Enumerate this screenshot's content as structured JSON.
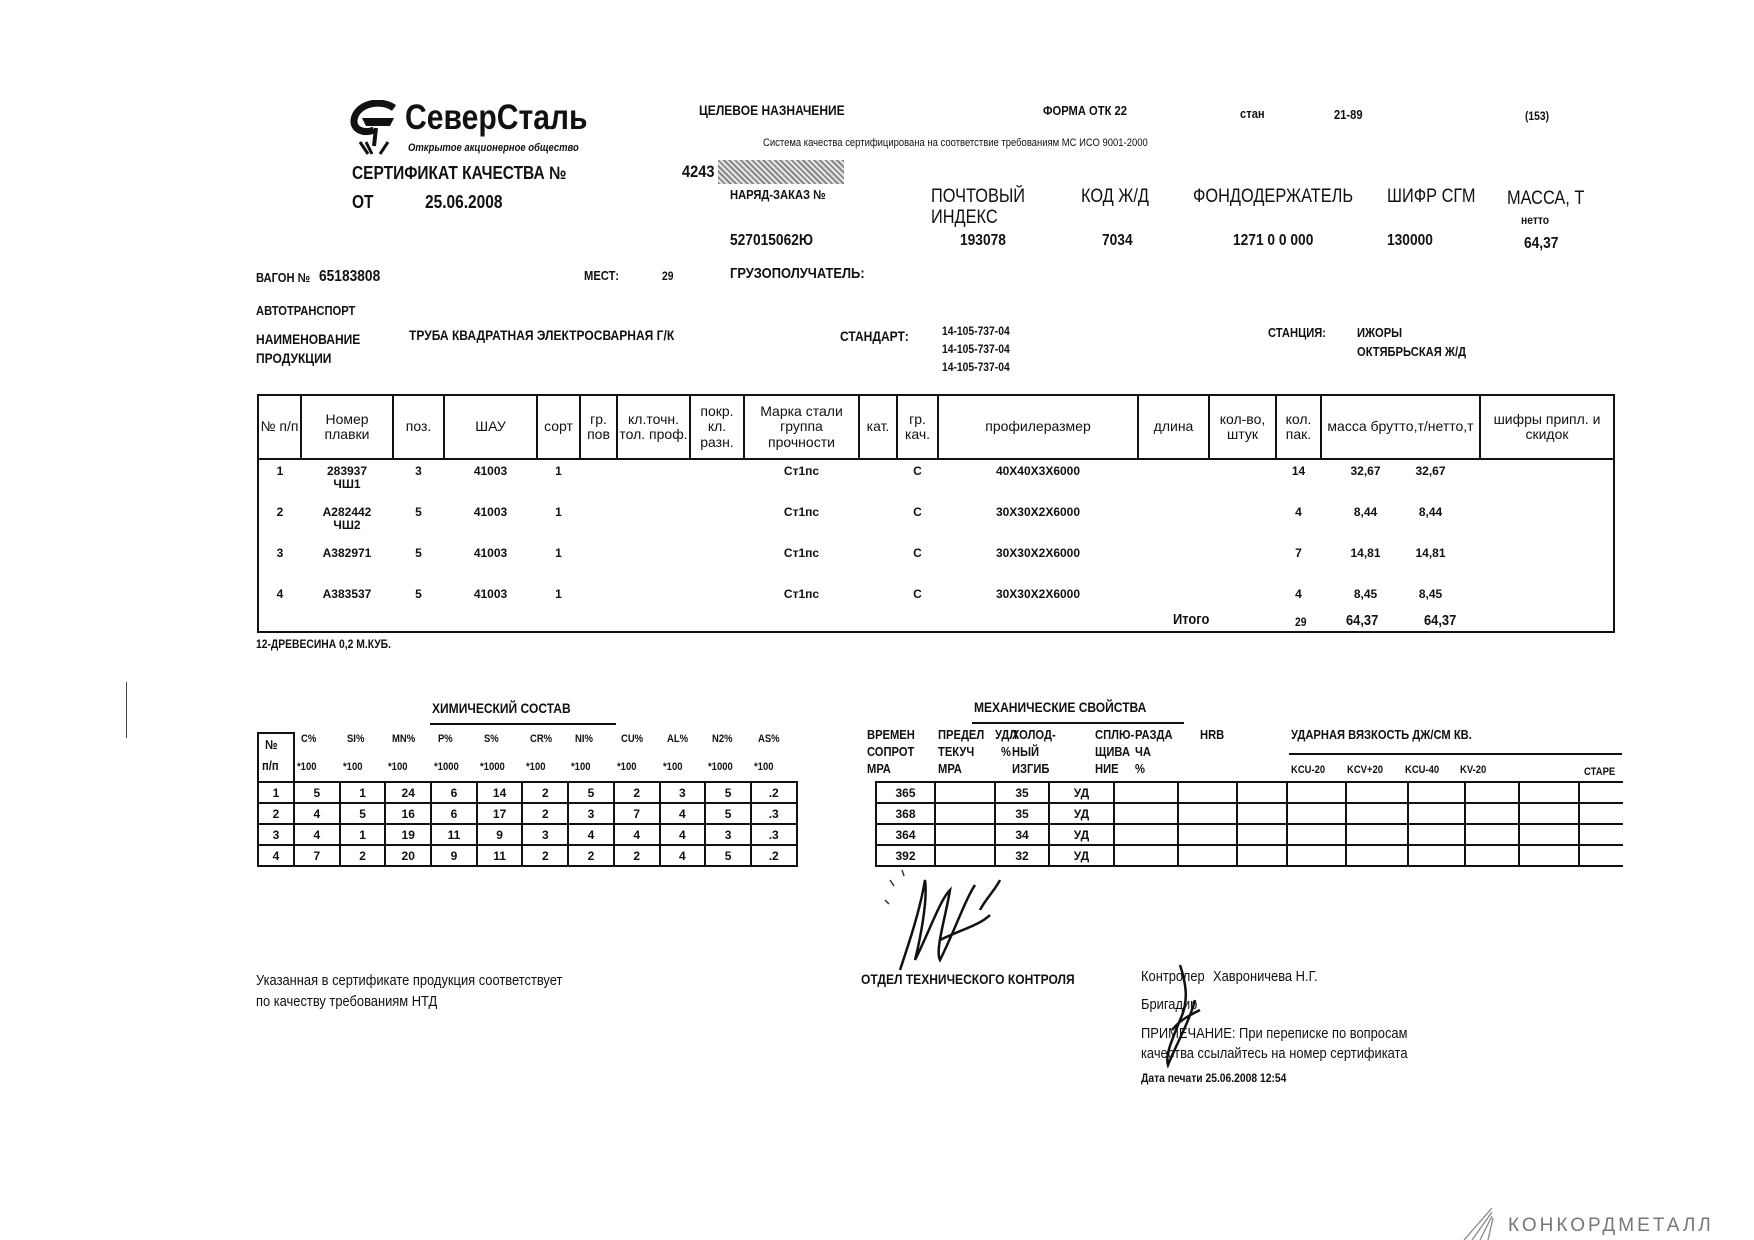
{
  "logo": {
    "name": "СеверСталь",
    "subtitle": "Открытое акционерное общество"
  },
  "header": {
    "purpose_label": "ЦЕЛЕВОЕ НАЗНАЧЕНИЕ",
    "form": "ФОРМА ОТК 22",
    "mill_label": "стан",
    "mill": "21-89",
    "code": "(153)",
    "iso_note": "Система качества сертифицирована на соответствие требованиям МС ИСО 9001-2000",
    "cert_label": "СЕРТИФИКАТ КАЧЕСТВА №",
    "cert_number": "4243",
    "date_label": "ОТ",
    "date": "25.06.2008"
  },
  "order": {
    "order_label": "НАРЯД-ЗАКАЗ №",
    "order_value": "527015062Ю",
    "postal_label_1": "ПОЧТОВЫЙ",
    "postal_label_2": "ИНДЕКС",
    "postal_value": "193078",
    "rail_label": "КОД Ж/Д",
    "rail_value": "7034",
    "holder_label": "ФОНДОДЕРЖАТЕЛЬ",
    "holder_value": "1271 0 0 000",
    "sgm_label": "ШИФР СГМ",
    "sgm_value": "130000",
    "mass_label": "МАССА, Т",
    "mass_sub": "нетто",
    "mass_value": "64,37"
  },
  "shipment": {
    "wagon_label": "ВАГОН №",
    "wagon_value": "65183808",
    "places_label": "МЕСТ:",
    "places_value": "29",
    "consignee_label": "ГРУЗОПОЛУЧАТЕЛЬ:",
    "auto_label": "АВТОТРАНСПОРТ",
    "product_label_1": "НАИМЕНОВАНИЕ",
    "product_label_2": "ПРОДУКЦИИ",
    "product_value": "ТРУБА КВАДРАТНАЯ ЭЛЕКТРОСВАРНАЯ Г/К",
    "standard_label": "СТАНДАРТ:",
    "standards": [
      "14-105-737-04",
      "14-105-737-04",
      "14-105-737-04"
    ],
    "station_label": "СТАНЦИЯ:",
    "station_value": "ИЖОРЫ",
    "railway": "ОКТЯБРЬСКАЯ Ж/Д"
  },
  "main_table": {
    "headers": [
      "№ п/п",
      "Номер плавки",
      "поз.",
      "ШАУ",
      "сорт",
      "гр. пов",
      "кл.точн. тол. проф.",
      "покр. кл. разн.",
      "Марка стали группа прочности",
      "кат.",
      "гр. кач.",
      "профилеразмер",
      "длина",
      "кол-во, штук",
      "кол. пак.",
      "масса брутто,т/нетто,т",
      "шифры припл. и скидок"
    ],
    "rows": [
      {
        "n": "1",
        "heat": "283937",
        "heat2": "ЧШ1",
        "pos": "3",
        "shau": "41003",
        "sort": "1",
        "grade": "Ст1пс",
        "quality": "С",
        "profile": "40Х40Х3Х6000",
        "packs": "14",
        "gross": "32,67",
        "net": "32,67"
      },
      {
        "n": "2",
        "heat": "А282442",
        "heat2": "ЧШ2",
        "pos": "5",
        "shau": "41003",
        "sort": "1",
        "grade": "Ст1пс",
        "quality": "С",
        "profile": "30Х30Х2Х6000",
        "packs": "4",
        "gross": "8,44",
        "net": "8,44"
      },
      {
        "n": "3",
        "heat": "А382971",
        "heat2": "",
        "pos": "5",
        "shau": "41003",
        "sort": "1",
        "grade": "Ст1пс",
        "quality": "С",
        "profile": "30Х30Х2Х6000",
        "packs": "7",
        "gross": "14,81",
        "net": "14,81"
      },
      {
        "n": "4",
        "heat": "А383537",
        "heat2": "",
        "pos": "5",
        "shau": "41003",
        "sort": "1",
        "grade": "Ст1пс",
        "quality": "С",
        "profile": "30Х30Х2Х6000",
        "packs": "4",
        "gross": "8,45",
        "net": "8,45"
      }
    ],
    "total_label": "Итого",
    "total_packs": "29",
    "total_gross": "64,37",
    "total_net": "64,37"
  },
  "wood_note": "12-ДРЕВЕСИНА 0,2 М.КУБ.",
  "chemistry": {
    "title": "ХИМИЧЕСКИЙ СОСТАВ",
    "num_label_1": "№",
    "num_label_2": "п/п",
    "elements": [
      "C%",
      "SI%",
      "MN%",
      "P%",
      "S%",
      "CR%",
      "NI%",
      "CU%",
      "AL%",
      "N2%",
      "AS%"
    ],
    "multipliers": [
      "*100",
      "*100",
      "*100",
      "*1000",
      "*1000",
      "*100",
      "*100",
      "*100",
      "*100",
      "*1000",
      "*100"
    ],
    "rows": [
      [
        "1",
        "5",
        "1",
        "24",
        "6",
        "14",
        "2",
        "5",
        "2",
        "3",
        "5",
        ".2"
      ],
      [
        "2",
        "4",
        "5",
        "16",
        "6",
        "17",
        "2",
        "3",
        "7",
        "4",
        "5",
        ".3"
      ],
      [
        "3",
        "4",
        "1",
        "19",
        "11",
        "9",
        "3",
        "4",
        "4",
        "4",
        "3",
        ".3"
      ],
      [
        "4",
        "7",
        "2",
        "20",
        "9",
        "11",
        "2",
        "2",
        "2",
        "4",
        "5",
        ".2"
      ]
    ]
  },
  "mechanics": {
    "title": "МЕХАНИЧЕСКИЕ СВОЙСТВА",
    "headers": [
      [
        "ВРЕМЕН",
        "СОПРОТ",
        "МРА"
      ],
      [
        "ПРЕДЕЛ",
        "ТЕКУЧ",
        "МРА"
      ],
      [
        "УДЛ",
        "%",
        ""
      ],
      [
        "ХОЛОД-",
        "НЫЙ",
        "ИЗГИБ"
      ],
      [
        "СПЛЮ-",
        "ЩИВА",
        "НИЕ"
      ],
      [
        "РАЗДА",
        "ЧА",
        "%"
      ],
      [
        "HRB",
        "",
        ""
      ]
    ],
    "impact_title": "УДАРНАЯ ВЯЗКОСТЬ ДЖ/СМ КВ.",
    "impact_cols": [
      "KCU-20",
      "KCV+20",
      "KCU-40",
      "KV-20"
    ],
    "aging_label": "СТАРЕ",
    "rows": [
      [
        "365",
        "",
        "35",
        "УД"
      ],
      [
        "368",
        "",
        "35",
        "УД"
      ],
      [
        "364",
        "",
        "34",
        "УД"
      ],
      [
        "392",
        "",
        "32",
        "УД"
      ]
    ]
  },
  "footer": {
    "conformity_1": "Указанная в сертификате продукция соответствует",
    "conformity_2": "по качеству требованиям НТД",
    "department": "ОТДЕЛ ТЕХНИЧЕСКОГО КОНТРОЛЯ",
    "controller_label": "Контролер",
    "controller_name": "Хавроничева Н.Г.",
    "foreman_label": "Бригадир",
    "note_1": "ПРИМЕЧАНИЕ: При переписке по вопросам",
    "note_2": "качества ссылайтесь на номер сертификата",
    "print_date": "Дата печати 25.06.2008 12:54"
  },
  "watermark": "КОНКОРДМЕТАЛЛ"
}
